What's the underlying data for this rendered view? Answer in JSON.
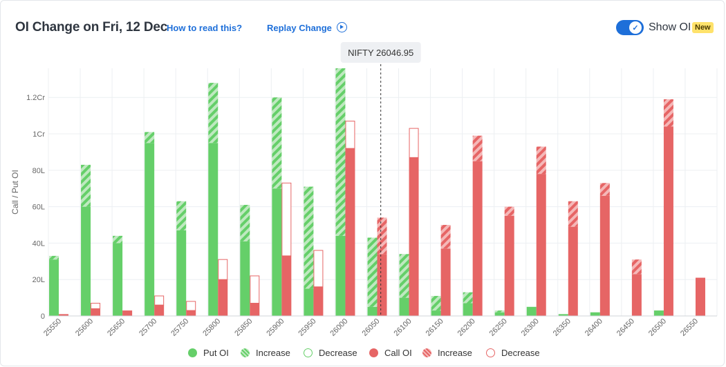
{
  "header": {
    "title": "OI Change on Fri, 12 Dec",
    "how_to_read": "How to read this?",
    "replay_label": "Replay Change",
    "toggle_label": "Show OI",
    "new_badge": "New"
  },
  "colors": {
    "put": "#65cf69",
    "put_increase": "#bfe9c0",
    "call": "#e66565",
    "call_increase": "#f5b8b8",
    "grid": "#eceff2",
    "axis_text": "#666666"
  },
  "legend": [
    {
      "key": "put_oi",
      "label": "Put OI"
    },
    {
      "key": "put_increase",
      "label": "Increase"
    },
    {
      "key": "put_decrease",
      "label": "Decrease"
    },
    {
      "key": "call_oi",
      "label": "Call OI"
    },
    {
      "key": "call_increase",
      "label": "Increase"
    },
    {
      "key": "call_decrease",
      "label": "Decrease"
    }
  ],
  "chart_data": {
    "type": "bar",
    "ylabel": "Call / Put OI",
    "y_ticks": [
      {
        "value": 0,
        "label": "0"
      },
      {
        "value": 20,
        "label": "20L"
      },
      {
        "value": 40,
        "label": "40L"
      },
      {
        "value": 60,
        "label": "60L"
      },
      {
        "value": 80,
        "label": "80L"
      },
      {
        "value": 100,
        "label": "1Cr"
      },
      {
        "value": 120,
        "label": "1.2Cr"
      }
    ],
    "ylim": [
      0,
      136
    ],
    "unit": "L",
    "spot_label": "NIFTY 26046.95",
    "spot_value": 26046.95,
    "grid": true,
    "legend_position": "bottom",
    "categories": [
      "25550",
      "25600",
      "25650",
      "25700",
      "25750",
      "25800",
      "25850",
      "25900",
      "25950",
      "26000",
      "26050",
      "26100",
      "26150",
      "26200",
      "26250",
      "26300",
      "26350",
      "26400",
      "26450",
      "26500",
      "26550"
    ],
    "series": [
      {
        "name": "Put OI",
        "values": [
          31,
          60,
          40,
          95,
          47,
          95,
          41,
          70,
          15,
          44,
          5,
          10,
          3,
          7,
          2,
          5,
          1,
          2,
          0,
          3,
          0
        ]
      },
      {
        "name": "Put Increase",
        "values": [
          2,
          23,
          4,
          6,
          16,
          33,
          20,
          50,
          56,
          92,
          38,
          24,
          8,
          6,
          1,
          0,
          0,
          0,
          0,
          0,
          0
        ]
      },
      {
        "name": "Put Decrease",
        "values": [
          0,
          0,
          0,
          0,
          0,
          0,
          0,
          0,
          0,
          0,
          0,
          0,
          0,
          0,
          0,
          0,
          0,
          0,
          0,
          0,
          0
        ]
      },
      {
        "name": "Call OI",
        "values": [
          1,
          4,
          3,
          6,
          3,
          20,
          7,
          33,
          16,
          92,
          34,
          87,
          37,
          85,
          55,
          78,
          49,
          66,
          23,
          104,
          21
        ]
      },
      {
        "name": "Call Increase",
        "values": [
          0,
          0,
          0,
          0,
          0,
          0,
          0,
          0,
          0,
          0,
          20,
          0,
          13,
          14,
          5,
          15,
          14,
          7,
          8,
          15,
          0
        ]
      },
      {
        "name": "Call Decrease",
        "values": [
          0,
          3,
          0,
          5,
          5,
          11,
          15,
          40,
          20,
          15,
          0,
          16,
          0,
          0,
          0,
          0,
          0,
          0,
          0,
          0,
          0
        ]
      }
    ]
  }
}
